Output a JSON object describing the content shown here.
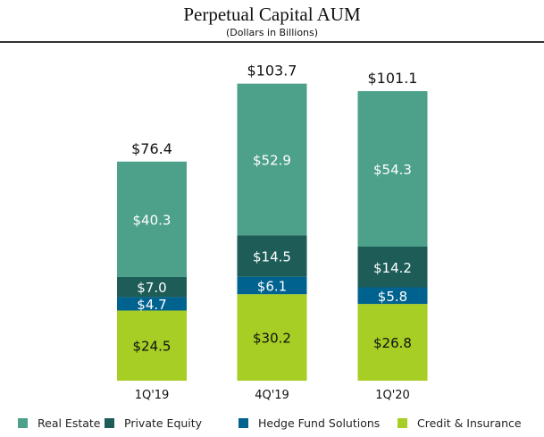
{
  "chart_data": {
    "type": "bar",
    "stacked": true,
    "title": "Perpetual Capital AUM",
    "subtitle": "(Dollars in Billions)",
    "xlabel": "",
    "ylabel": "",
    "categories": [
      "1Q'19",
      "4Q'19",
      "1Q'20"
    ],
    "totals": [
      76.4,
      103.7,
      101.1
    ],
    "total_labels": [
      "$76.4",
      "$103.7",
      "$101.1"
    ],
    "series": [
      {
        "name": "Credit & Insurance",
        "color": "#a6ce24",
        "label_color": "#111111",
        "values": [
          24.5,
          30.2,
          26.8
        ],
        "labels": [
          "$24.5",
          "$30.2",
          "$26.8"
        ]
      },
      {
        "name": "Hedge Fund Solutions",
        "color": "#00628f",
        "label_color": "#ffffff",
        "values": [
          4.7,
          6.1,
          5.8
        ],
        "labels": [
          "$4.7",
          "$6.1",
          "$5.8"
        ]
      },
      {
        "name": "Private Equity",
        "color": "#1d5c57",
        "label_color": "#ffffff",
        "values": [
          7.0,
          14.5,
          14.2
        ],
        "labels": [
          "$7.0",
          "$14.5",
          "$14.2"
        ]
      },
      {
        "name": "Real Estate",
        "color": "#4da08a",
        "label_color": "#ffffff",
        "values": [
          40.3,
          52.9,
          54.3
        ],
        "labels": [
          "$40.3",
          "$52.9",
          "$54.3"
        ]
      }
    ],
    "legend": {
      "placement": "bottom",
      "order": [
        "Real Estate",
        "Private Equity",
        "Hedge Fund Solutions",
        "Credit & Insurance"
      ]
    },
    "grid": false
  }
}
